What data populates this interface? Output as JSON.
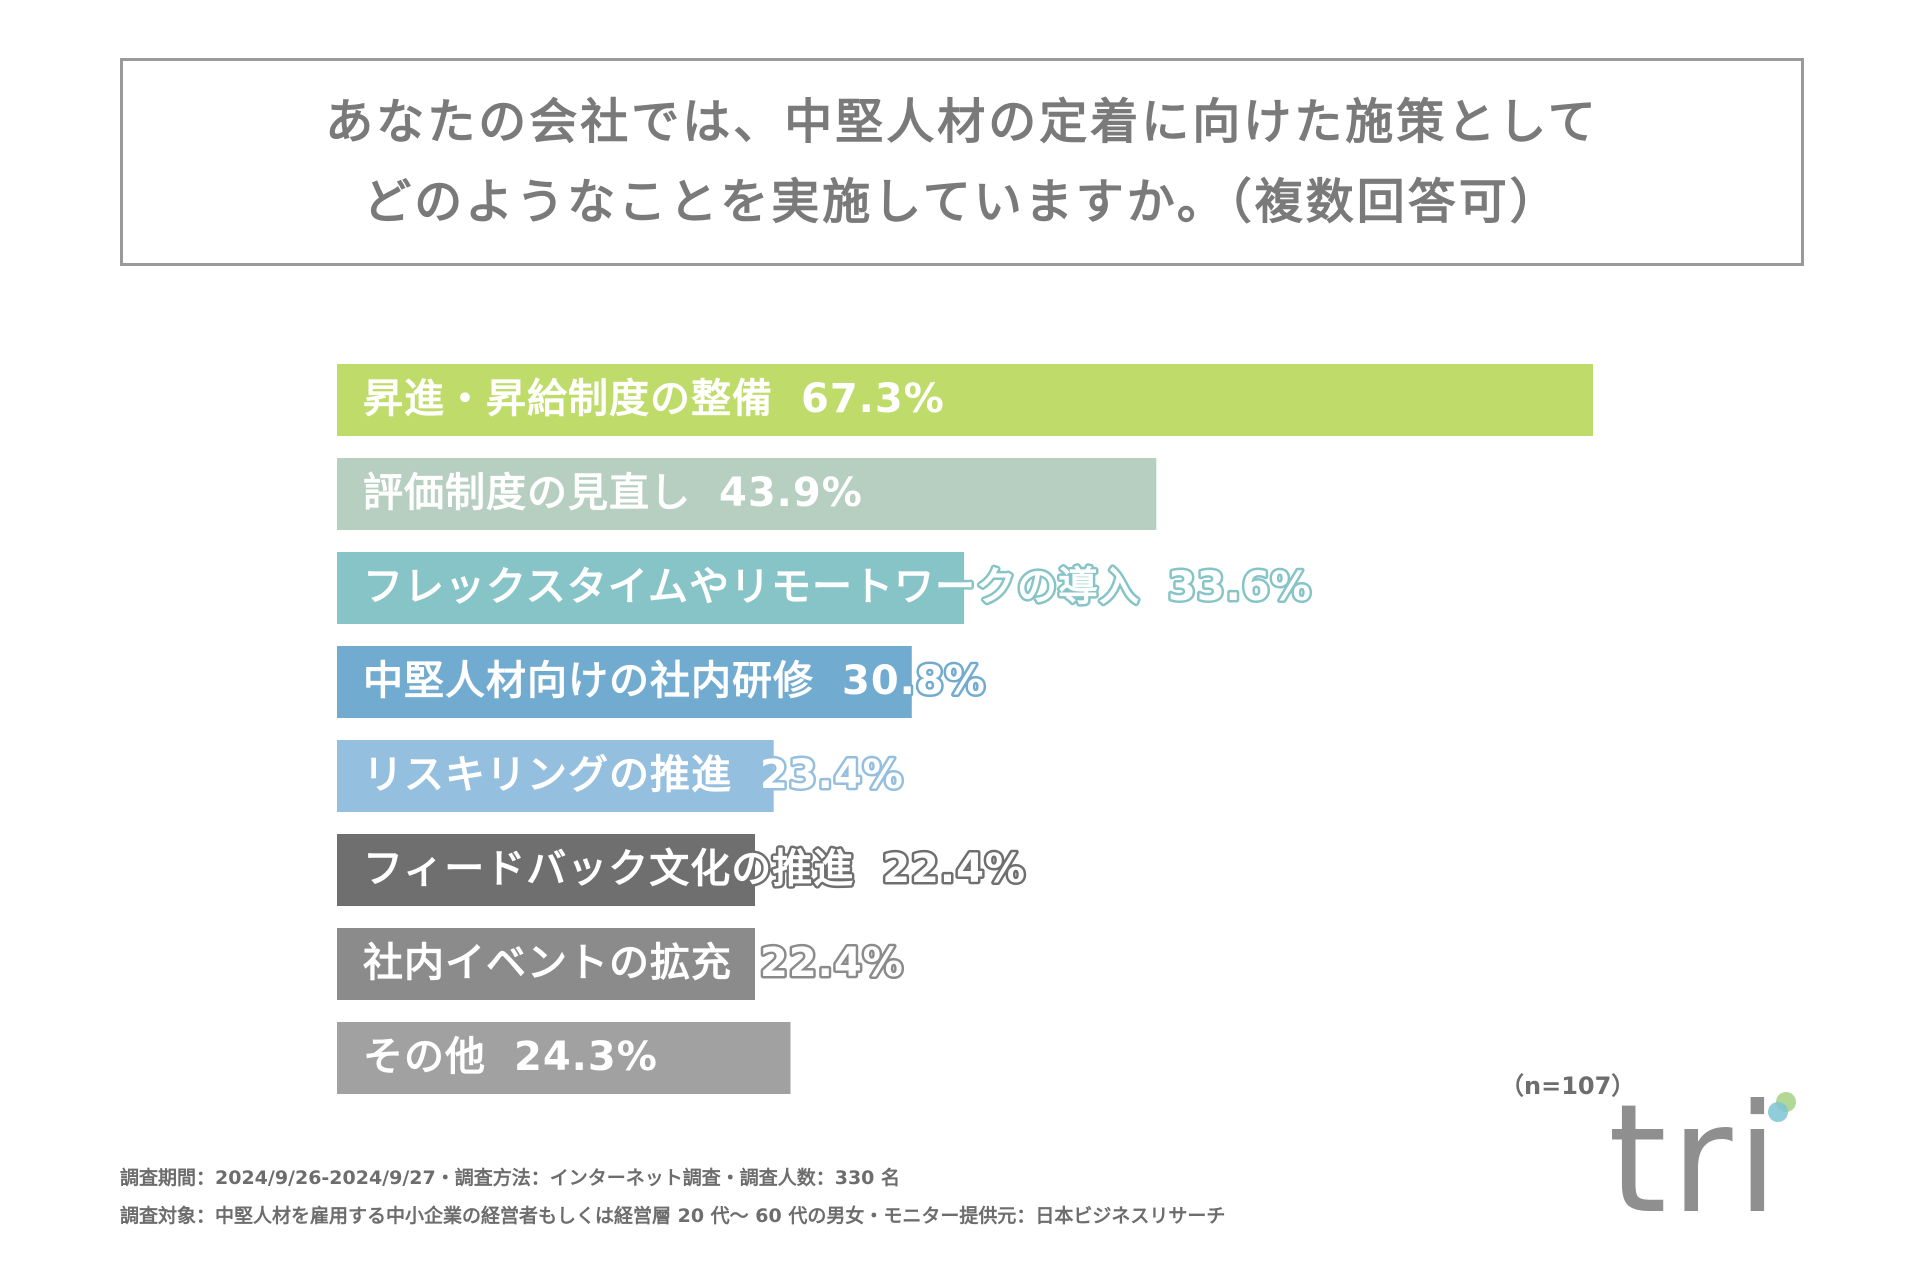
{
  "title": {
    "line1": "あなたの会社では、中堅人材の定着に向けた施策として",
    "line2": "どのようなことを実施していますか。（複数回答可）"
  },
  "chart_data": {
    "type": "bar",
    "orientation": "horizontal",
    "unit": "%",
    "categories": [
      "昇進・昇給制度の整備",
      "評価制度の見直し",
      "フレックスタイムやリモートワークの導入",
      "中堅人材向けの社内研修",
      "リスキリングの推進",
      "フィードバック文化の推進",
      "社内イベントの拡充",
      "その他"
    ],
    "values": [
      67.3,
      43.9,
      33.6,
      30.8,
      23.4,
      22.4,
      22.4,
      24.3
    ],
    "value_labels": [
      "67.3%",
      "43.9%",
      "33.6%",
      "30.8%",
      "23.4%",
      "22.4%",
      "22.4%",
      "24.3%"
    ],
    "colors": [
      "#bfdc6b",
      "#b6cfc0",
      "#87c4c7",
      "#72abd0",
      "#94bfde",
      "#6f6f6f",
      "#8b8b8b",
      "#a1a1a1"
    ],
    "xlim": [
      0,
      67.3
    ],
    "grid": false,
    "legend": "none"
  },
  "sample_size": "（n=107）",
  "footer": {
    "line1": "調査期間：2024/9/26-2024/9/27・調査方法：インターネット調査・調査人数：330 名",
    "line2": "調査対象：中堅人材を雇用する中小企業の経営者もしくは経営層 20 代～ 60 代の男女・モニター提供元：日本ビジネスリサーチ"
  },
  "logo": {
    "text": "tri",
    "colors": [
      "#8f8f8f",
      "#a8d58a",
      "#7ec3d3"
    ]
  }
}
